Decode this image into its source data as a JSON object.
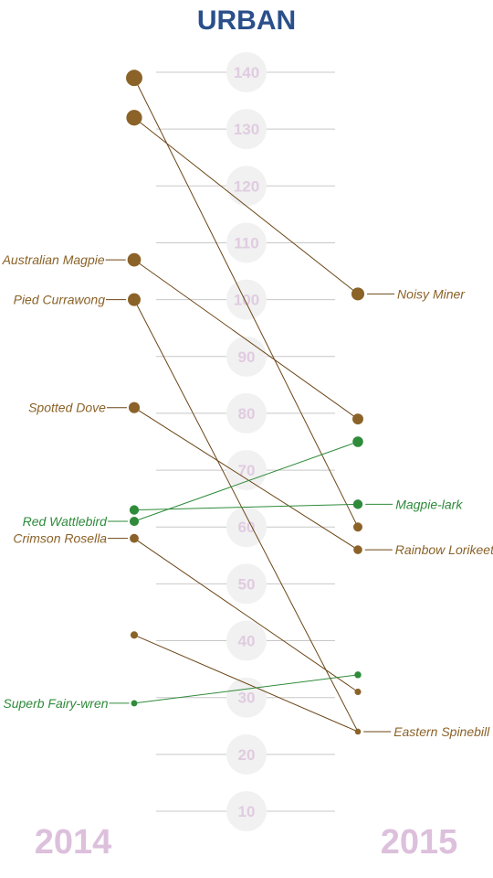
{
  "chart_data": {
    "type": "line",
    "title": "URBAN",
    "x": [
      "2014",
      "2015"
    ],
    "ylim": [
      5,
      145
    ],
    "yticks": [
      10,
      20,
      30,
      40,
      50,
      60,
      70,
      80,
      90,
      100,
      110,
      120,
      130,
      140
    ],
    "grid": true,
    "colors": {
      "title": "#2a4f8a",
      "year": "#dcc0dc",
      "tick_text": "#e0cce0",
      "tick_bubble": "#f1f1f1",
      "grid": "#c8c8c8",
      "brown": "#8b6228",
      "line_brown": "#6b4516",
      "green": "#2e8b3a"
    },
    "series": [
      {
        "values": [
          139,
          60
        ],
        "color": "brown"
      },
      {
        "values": [
          132,
          101
        ],
        "color": "brown",
        "label_2015": "Noisy Miner"
      },
      {
        "values": [
          107,
          79
        ],
        "color": "brown",
        "label_2014": "Australian Magpie"
      },
      {
        "values": [
          100,
          24
        ],
        "color": "brown",
        "label_2014": "Pied Currawong",
        "label_2015": "Eastern Spinebill"
      },
      {
        "values": [
          81,
          56
        ],
        "color": "brown",
        "label_2014": "Spotted Dove",
        "label_2015": "Rainbow Lorikeet"
      },
      {
        "values": [
          63,
          64
        ],
        "color": "green",
        "label_2015": "Magpie-lark"
      },
      {
        "values": [
          61,
          75
        ],
        "color": "green",
        "label_2014": "Red Wattlebird"
      },
      {
        "values": [
          58,
          31
        ],
        "color": "brown",
        "label_2014": "Crimson Rosella"
      },
      {
        "values": [
          41,
          24
        ],
        "color": "brown"
      },
      {
        "values": [
          29,
          34
        ],
        "color": "green",
        "label_2014": "Superb Fairy-wren"
      }
    ]
  }
}
